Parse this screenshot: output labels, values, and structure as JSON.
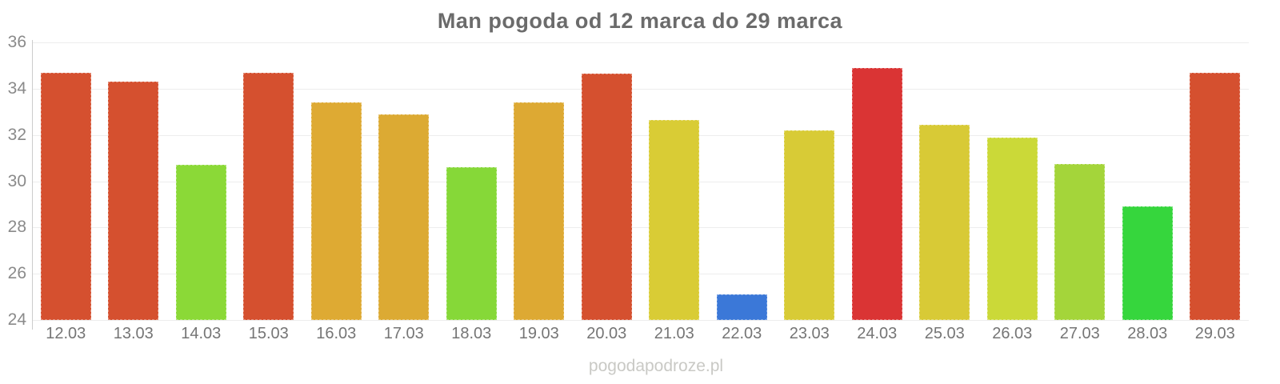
{
  "title": "Man pogoda od 12 marca do 29 marca",
  "watermark": "pogodapodroze.pl",
  "chart_data": {
    "type": "bar",
    "title": "Man pogoda od 12 marca do 29 marca",
    "xlabel": "",
    "ylabel": "",
    "ylim": [
      24,
      36
    ],
    "yticks": [
      36,
      34,
      32,
      30,
      28,
      26,
      24
    ],
    "grid": true,
    "legend": "none",
    "categories": [
      "12.03",
      "13.03",
      "14.03",
      "15.03",
      "16.03",
      "17.03",
      "18.03",
      "19.03",
      "20.03",
      "21.03",
      "22.03",
      "23.03",
      "24.03",
      "25.03",
      "26.03",
      "27.03",
      "28.03",
      "29.03"
    ],
    "values": [
      34.7,
      34.3,
      30.7,
      34.7,
      33.4,
      32.9,
      30.6,
      33.4,
      34.65,
      32.65,
      25.1,
      32.2,
      34.9,
      32.45,
      31.9,
      30.75,
      28.9,
      34.7
    ],
    "bar_colors": [
      "#d5502f",
      "#d5502f",
      "#8bd937",
      "#d5502f",
      "#deaa33",
      "#dcaa33",
      "#86d838",
      "#dda933",
      "#d5502f",
      "#d9cc35",
      "#3b78d8",
      "#d8cb36",
      "#da3434",
      "#d8ca36",
      "#cbd938",
      "#a4d53a",
      "#36d63d",
      "#d5502f"
    ],
    "colors_meaning": {
      "red": "#da3434",
      "red_orange": "#d5502f",
      "orange": "#deaa33",
      "yellow": "#d9cc35",
      "yellow_green": "#cbd938",
      "green": "#36d63d",
      "blue": "#3b78d8"
    },
    "axis_color": "#cccccc",
    "grid_color": "#ededed",
    "tick_label_color": "#8a8a8a",
    "x_label_color": "#757575"
  }
}
